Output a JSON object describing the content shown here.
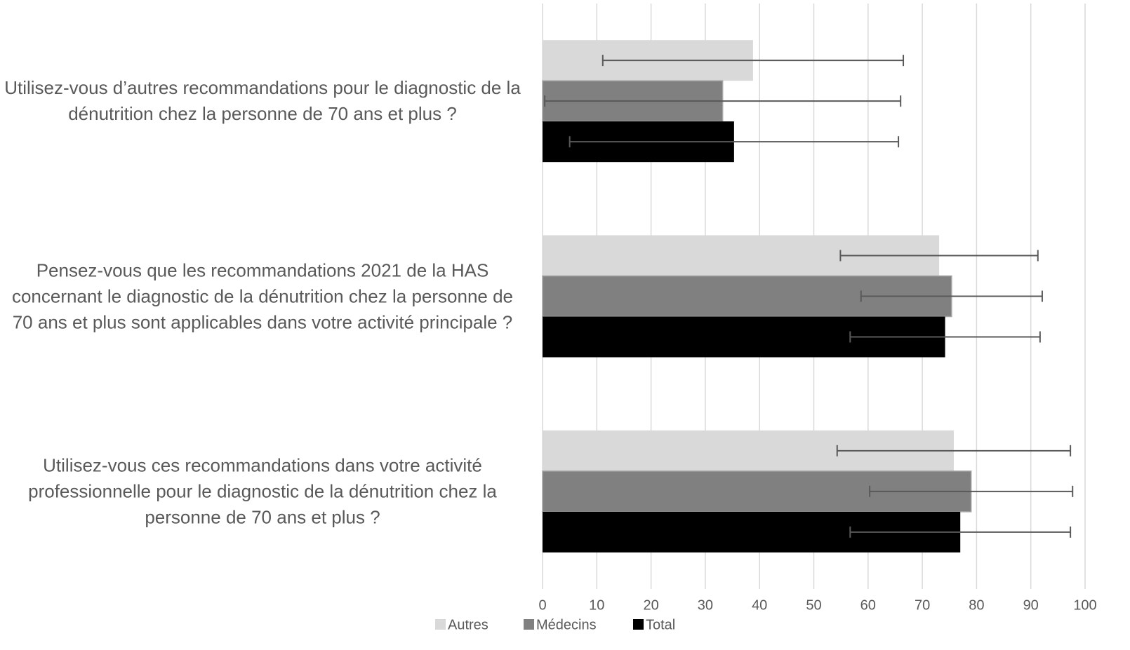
{
  "chart_data": {
    "type": "bar",
    "orientation": "horizontal",
    "categories": [
      "Utilisez-vous d’autres recommandations pour le diagnostic de la dénutrition chez la personne de 70 ans et plus ?",
      "Pensez-vous que les recommandations 2021 de la HAS concernant le diagnostic de la dénutrition chez la personne de 70 ans et plus sont applicables dans votre activité principale ?",
      "Utilisez-vous ces recommandations dans votre activité professionnelle pour le diagnostic de la dénutrition chez la personne de 70 ans et plus ?"
    ],
    "series": [
      {
        "name": "Autres",
        "color": "#d9d9d9",
        "values": [
          38.8,
          73.1,
          75.8
        ],
        "errors": [
          27.7,
          18.2,
          21.5
        ]
      },
      {
        "name": "Médecins",
        "color": "#808080",
        "values": [
          33.2,
          75.4,
          79.0
        ],
        "errors": [
          32.8,
          16.7,
          18.7
        ]
      },
      {
        "name": "Total",
        "color": "#000000",
        "values": [
          35.3,
          74.2,
          77.0
        ],
        "errors": [
          30.3,
          17.5,
          20.3
        ]
      }
    ],
    "xlim": [
      0,
      100
    ],
    "xticks": [
      0,
      10,
      20,
      30,
      40,
      50,
      60,
      70,
      80,
      90,
      100
    ],
    "grid": true,
    "legend": "bottom"
  }
}
